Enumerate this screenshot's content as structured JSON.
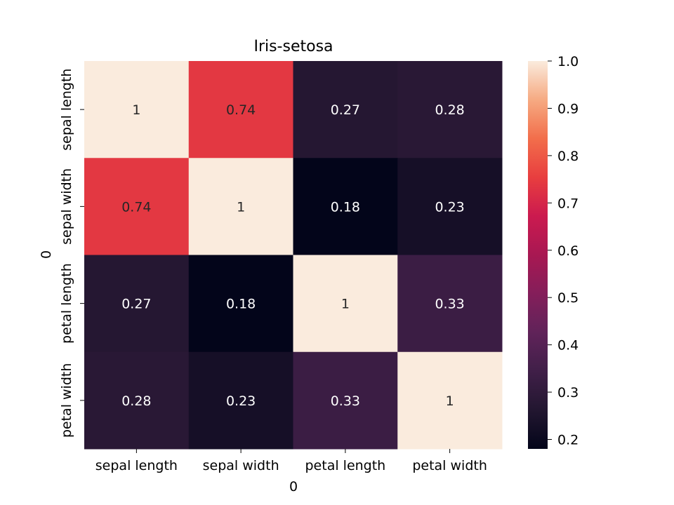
{
  "chart_data": {
    "type": "heatmap",
    "title": "Iris-setosa",
    "xlabel": "0",
    "ylabel": "0",
    "x_categories": [
      "sepal length",
      "sepal width",
      "petal length",
      "petal width"
    ],
    "y_categories": [
      "sepal length",
      "sepal width",
      "petal length",
      "petal width"
    ],
    "values": [
      [
        1,
        0.74,
        0.27,
        0.28
      ],
      [
        0.74,
        1,
        0.18,
        0.23
      ],
      [
        0.27,
        0.18,
        1,
        0.33
      ],
      [
        0.28,
        0.23,
        0.33,
        1
      ]
    ],
    "cell_labels": [
      [
        "1",
        "0.74",
        "0.27",
        "0.28"
      ],
      [
        "0.74",
        "1",
        "0.18",
        "0.23"
      ],
      [
        "0.27",
        "0.18",
        "1",
        "0.33"
      ],
      [
        "0.28",
        "0.23",
        "0.33",
        "1"
      ]
    ],
    "colorbar": {
      "colormap": "rocket",
      "range": [
        0.18,
        1.0
      ],
      "ticks": [
        0.2,
        0.3,
        0.4,
        0.5,
        0.6,
        0.7,
        0.8,
        0.9,
        1.0
      ],
      "tick_labels": [
        "0.2",
        "0.3",
        "0.4",
        "0.5",
        "0.6",
        "0.7",
        "0.8",
        "0.9",
        "1.0"
      ]
    }
  }
}
